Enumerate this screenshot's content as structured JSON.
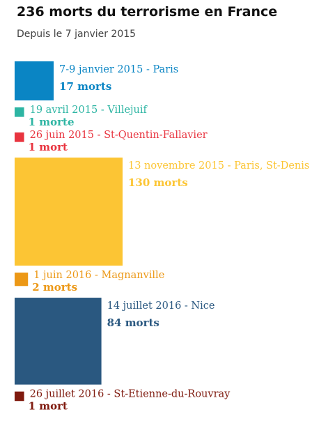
{
  "header": {
    "title": "236 morts du terrorisme en France",
    "subtitle": "Depuis le 7 janvier 2015"
  },
  "chart_data": {
    "type": "area",
    "encoding": "square-area-proportional-to-deaths",
    "total": 236,
    "series": [
      {
        "label": "7-9 janvier 2015 - Paris",
        "value": 17,
        "value_label": "17 morts",
        "color": "#0a85c4"
      },
      {
        "label": "19 avril 2015 - Villejuif",
        "value": 1,
        "value_label": "1 morte",
        "color": "#2db5a3"
      },
      {
        "label": "26 juin 2015 - St-Quentin-Fallavier",
        "value": 1,
        "value_label": "1 mort",
        "color": "#e8343f"
      },
      {
        "label": "13 novembre 2015 - Paris, St-Denis",
        "value": 130,
        "value_label": "130 morts",
        "color": "#fcc534"
      },
      {
        "label": "1 juin 2016 - Magnanville",
        "value": 2,
        "value_label": "2 morts",
        "color": "#ec9816"
      },
      {
        "label": "14 juillet 2016 - Nice",
        "value": 84,
        "value_label": "84 morts",
        "color": "#2a5880"
      },
      {
        "label": "26 juillet 2016 - St-Etienne-du-Rouvray",
        "value": 1,
        "value_label": "1 mort",
        "color": "#7f1a0e"
      }
    ]
  }
}
